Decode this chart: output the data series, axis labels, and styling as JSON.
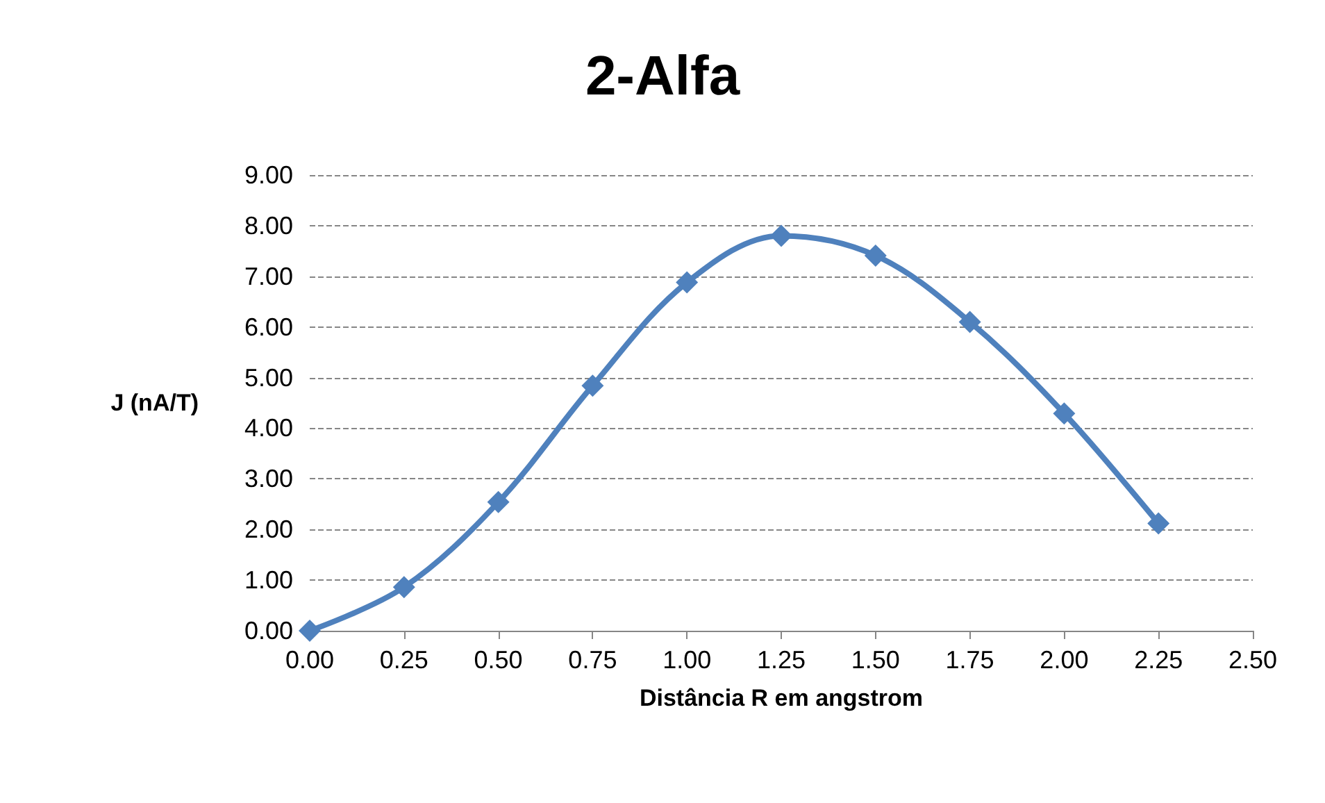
{
  "chart_data": {
    "type": "line",
    "title": "2-Alfa",
    "xlabel": "Distância R em angstrom",
    "ylabel": "J (nA/T)",
    "x": [
      0,
      0.25,
      0.5,
      0.75,
      1.0,
      1.25,
      1.5,
      1.75,
      2.0,
      2.25
    ],
    "series": [
      {
        "color": "#4f81bd",
        "values": [
          0,
          0.86,
          2.54,
          4.84,
          6.88,
          7.8,
          7.41,
          6.1,
          4.29,
          2.12
        ]
      }
    ],
    "xlim": [
      0,
      2.5
    ],
    "ylim": [
      0,
      9
    ],
    "xticks": [
      {
        "value": 0,
        "label": "0.00"
      },
      {
        "value": 0.25,
        "label": "0.25"
      },
      {
        "value": 0.5,
        "label": "0.50"
      },
      {
        "value": 0.75,
        "label": "0.75"
      },
      {
        "value": 1,
        "label": "1.00"
      },
      {
        "value": 1.25,
        "label": "1.25"
      },
      {
        "value": 1.5,
        "label": "1.50"
      },
      {
        "value": 1.75,
        "label": "1.75"
      },
      {
        "value": 2,
        "label": "2.00"
      },
      {
        "value": 2.25,
        "label": "2.25"
      },
      {
        "value": 2.5,
        "label": "2.50"
      }
    ],
    "yticks": [
      {
        "value": 0,
        "label": "0.00"
      },
      {
        "value": 1,
        "label": "1.00"
      },
      {
        "value": 2,
        "label": "2.00"
      },
      {
        "value": 3,
        "label": "3.00"
      },
      {
        "value": 4,
        "label": "4.00"
      },
      {
        "value": 5,
        "label": "5.00"
      },
      {
        "value": 6,
        "label": "6.00"
      },
      {
        "value": 7,
        "label": "7.00"
      },
      {
        "value": 8,
        "label": "8.00"
      },
      {
        "value": 9,
        "label": "9.00"
      }
    ],
    "grid": "y",
    "marker": "diamond",
    "line_style": "solid"
  }
}
